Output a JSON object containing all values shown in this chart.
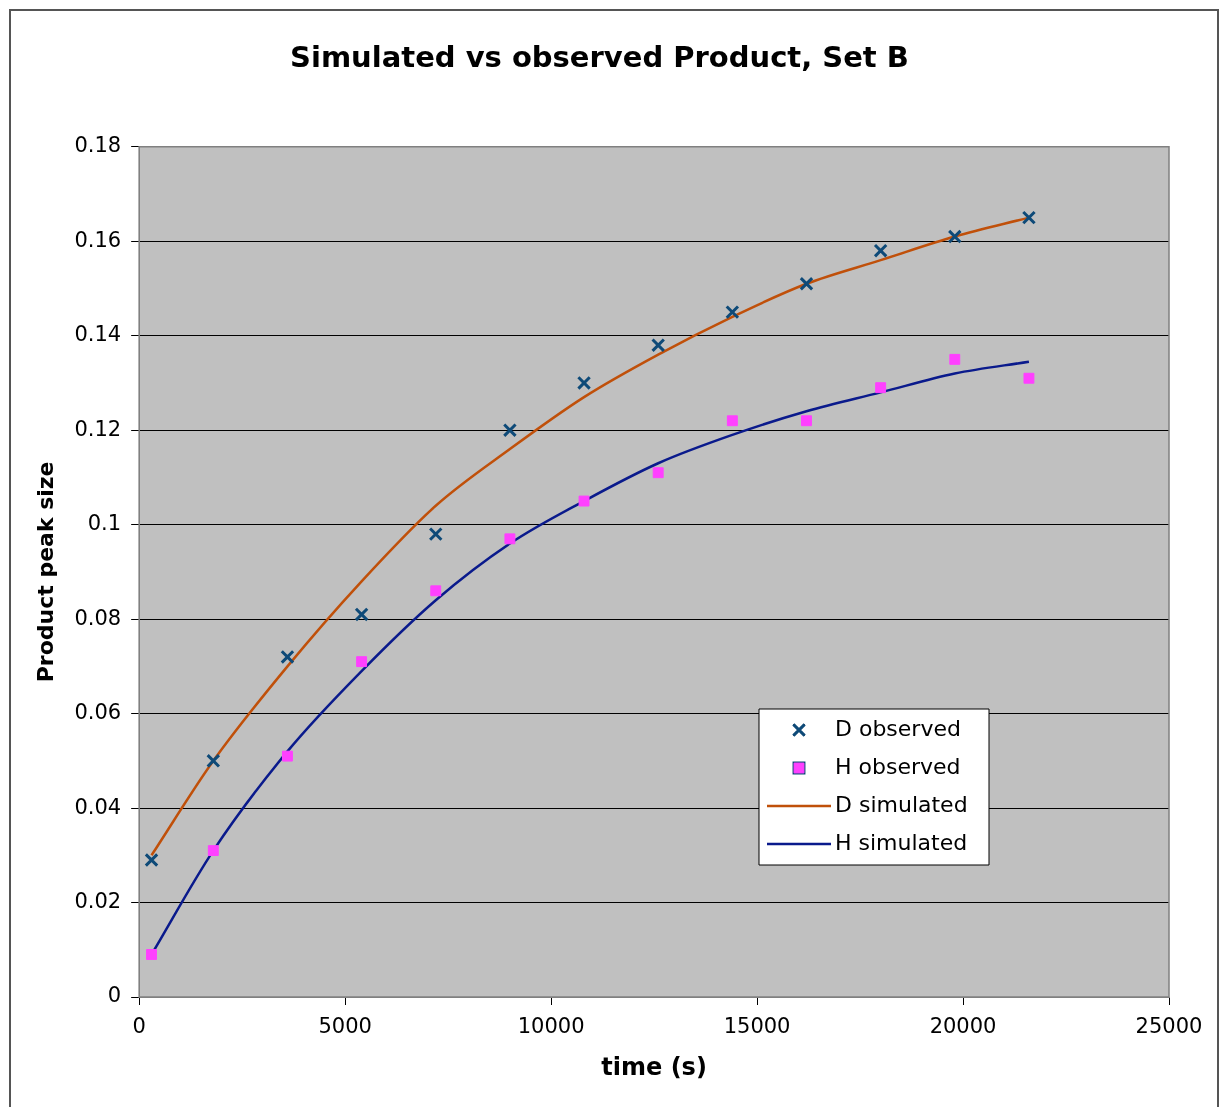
{
  "chart_data": {
    "type": "scatter",
    "title": "Simulated vs observed Product, Set B",
    "xlabel": "time (s)",
    "ylabel": "Product peak size",
    "x": [
      300,
      1800,
      3600,
      5400,
      7200,
      9000,
      10800,
      12600,
      14400,
      16200,
      18000,
      19800,
      21600
    ],
    "series": [
      {
        "name": "D observed",
        "type": "scatter",
        "marker": "cross",
        "color": "#0e4a78",
        "values": [
          0.029,
          0.05,
          0.072,
          0.081,
          0.098,
          0.12,
          0.13,
          0.138,
          0.145,
          0.151,
          0.158,
          0.161,
          0.165
        ]
      },
      {
        "name": "H observed",
        "type": "scatter",
        "marker": "square",
        "color": "#ff40ff",
        "values": [
          0.009,
          0.031,
          0.051,
          0.071,
          0.086,
          0.097,
          0.105,
          0.111,
          0.122,
          0.122,
          0.129,
          0.135,
          0.131
        ]
      },
      {
        "name": "D simulated",
        "type": "line",
        "marker": "none",
        "line_style": "solid",
        "color": "#c0500a",
        "values": [
          0.03,
          0.05,
          0.07,
          0.088,
          0.104,
          0.116,
          0.127,
          0.136,
          0.144,
          0.151,
          0.156,
          0.161,
          0.165
        ]
      },
      {
        "name": "H simulated",
        "type": "line",
        "marker": "none",
        "line_style": "solid",
        "color": "#0a1a8c",
        "values": [
          0.009,
          0.031,
          0.052,
          0.069,
          0.084,
          0.096,
          0.105,
          0.113,
          0.119,
          0.124,
          0.128,
          0.132,
          0.1345
        ]
      }
    ],
    "xlim": [
      0,
      25000
    ],
    "xticks": [
      0,
      5000,
      10000,
      15000,
      20000,
      25000
    ],
    "ylim": [
      0,
      0.18
    ],
    "yticks": [
      0,
      0.02,
      0.04,
      0.06,
      0.08,
      0.1,
      0.12,
      0.14,
      0.16,
      0.18
    ],
    "grid": "y",
    "legend": "bottom right"
  }
}
